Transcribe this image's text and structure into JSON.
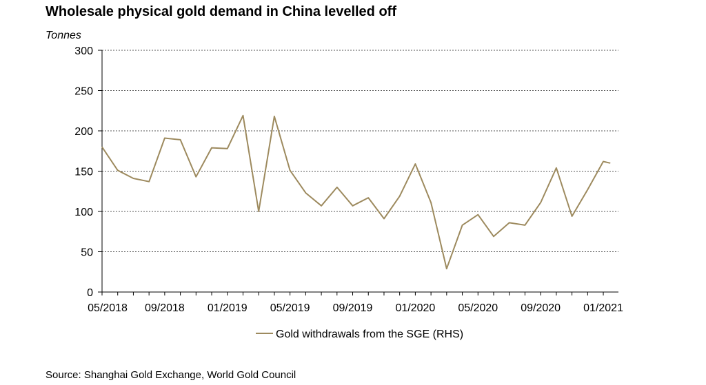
{
  "chart_data": {
    "type": "line",
    "title": "Wholesale physical gold demand in China levelled off",
    "ylabel": "Tonnes",
    "ylim": [
      0,
      300
    ],
    "yticks": [
      0,
      50,
      100,
      150,
      200,
      250,
      300
    ],
    "xticks": [
      "05/2018",
      "09/2018",
      "01/2019",
      "05/2019",
      "09/2019",
      "01/2020",
      "05/2020",
      "09/2020",
      "01/2021"
    ],
    "grid": "horizontal dotted",
    "legend_position": "bottom",
    "series": [
      {
        "name": "Gold withdrawals from the SGE (RHS)",
        "color": "#9d8a5e",
        "x": [
          "2018-05",
          "2018-06",
          "2018-07",
          "2018-08",
          "2018-09",
          "2018-10",
          "2018-11",
          "2018-12",
          "2019-01",
          "2019-02",
          "2019-03",
          "2019-04",
          "2019-05",
          "2019-06",
          "2019-07",
          "2019-08",
          "2019-09",
          "2019-10",
          "2019-11",
          "2019-12",
          "2020-01",
          "2020-02",
          "2020-03",
          "2020-04",
          "2020-05",
          "2020-06",
          "2020-07",
          "2020-08",
          "2020-09",
          "2020-10",
          "2020-11",
          "2020-12",
          "2021-01"
        ],
        "values": [
          180,
          151,
          141,
          137,
          191,
          189,
          143,
          179,
          178,
          219,
          100,
          218,
          151,
          123,
          107,
          130,
          107,
          117,
          91,
          119,
          159,
          111,
          29,
          83,
          96,
          69,
          86,
          83,
          111,
          154,
          94,
          127,
          162
        ]
      }
    ],
    "last_point": {
      "x": "2021-01-late",
      "value": 160
    }
  },
  "source": "Source: Shanghai Gold Exchange, World Gold Council"
}
